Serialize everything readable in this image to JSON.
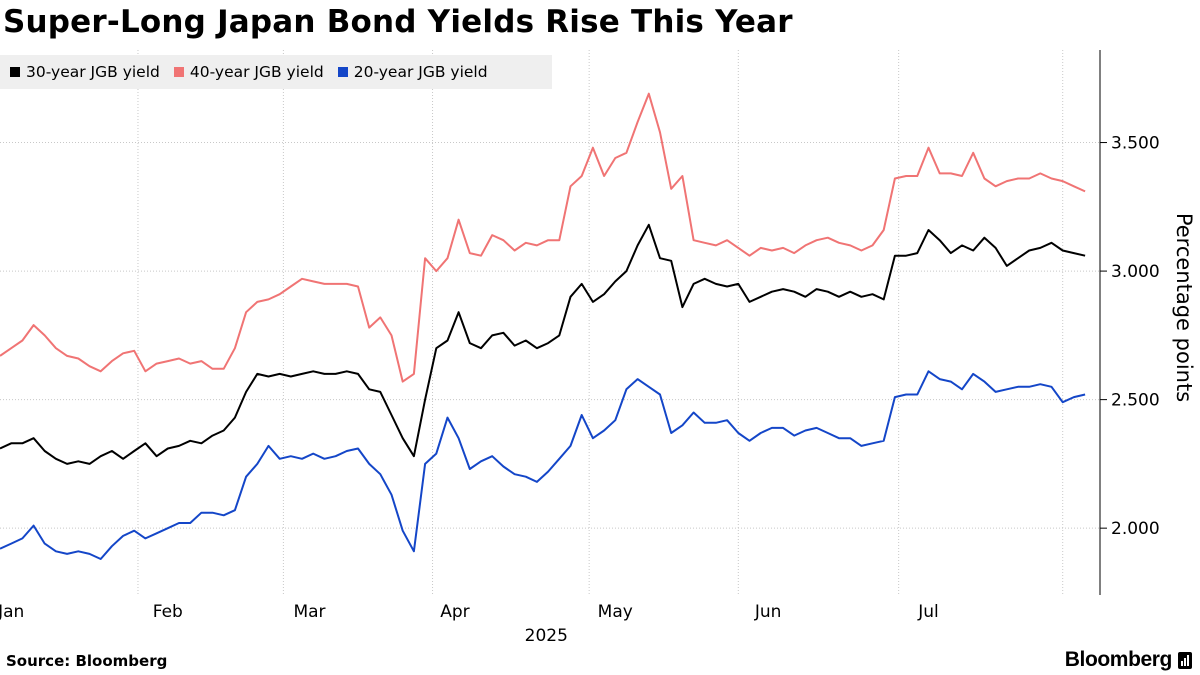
{
  "header": {
    "title": "Super-Long Japan Bond Yields Rise This Year"
  },
  "footer": {
    "source": "Source: Bloomberg",
    "brand": "Bloomberg"
  },
  "colors": {
    "series_30y": "#000000",
    "series_40y": "#f07474",
    "series_20y": "#1446c8",
    "grid": "#c8c8c8",
    "legend_bg": "#efefef"
  },
  "chart_data": {
    "type": "line",
    "title": "Super-Long Japan Bond Yields Rise This Year",
    "xlabel": "2025",
    "ylabel": "Percentage points",
    "x_range": [
      0,
      29.5
    ],
    "x_unit": "weeks from start of 2025",
    "ylim": [
      1.74,
      3.86
    ],
    "y_ticks": [
      2.0,
      2.5,
      3.0,
      3.5
    ],
    "y_tick_labels": [
      "2.000",
      "2.500",
      "3.000",
      "3.500"
    ],
    "month_ticks": [
      {
        "label": "Jan",
        "x": 0.3
      },
      {
        "label": "Feb",
        "x": 4.5
      },
      {
        "label": "Mar",
        "x": 8.3
      },
      {
        "label": "Apr",
        "x": 12.2
      },
      {
        "label": "May",
        "x": 16.5
      },
      {
        "label": "Jun",
        "x": 20.6
      },
      {
        "label": "Jul",
        "x": 24.9
      }
    ],
    "month_boundaries": [
      3.7,
      7.6,
      11.6,
      15.8,
      19.8,
      24.1,
      28.5
    ],
    "year_label": "2025",
    "grid": true,
    "legend_position": "top-left",
    "series": [
      {
        "name": "30-year JGB yield",
        "x": [
          0,
          0.3,
          0.6,
          0.9,
          1.2,
          1.5,
          1.8,
          2.1,
          2.4,
          2.7,
          3.0,
          3.3,
          3.6,
          3.9,
          4.2,
          4.5,
          4.8,
          5.1,
          5.4,
          5.7,
          6.0,
          6.3,
          6.6,
          6.9,
          7.2,
          7.5,
          7.8,
          8.1,
          8.4,
          8.7,
          9.0,
          9.3,
          9.6,
          9.9,
          10.2,
          10.5,
          10.8,
          11.1,
          11.4,
          11.7,
          12.0,
          12.3,
          12.6,
          12.9,
          13.2,
          13.5,
          13.8,
          14.1,
          14.4,
          14.7,
          15.0,
          15.3,
          15.6,
          15.9,
          16.2,
          16.5,
          16.8,
          17.1,
          17.4,
          17.7,
          18.0,
          18.3,
          18.6,
          18.9,
          19.2,
          19.5,
          19.8,
          20.1,
          20.4,
          20.7,
          21.0,
          21.3,
          21.6,
          21.9,
          22.2,
          22.5,
          22.8,
          23.1,
          23.4,
          23.7,
          24.0,
          24.3,
          24.6,
          24.9,
          25.2,
          25.5,
          25.8,
          26.1,
          26.4,
          26.7,
          27.0,
          27.3,
          27.6,
          27.9,
          28.2,
          28.5,
          28.8,
          29.1
        ],
        "values": [
          2.31,
          2.33,
          2.33,
          2.35,
          2.3,
          2.27,
          2.25,
          2.26,
          2.25,
          2.28,
          2.3,
          2.27,
          2.3,
          2.33,
          2.28,
          2.31,
          2.32,
          2.34,
          2.33,
          2.36,
          2.38,
          2.43,
          2.53,
          2.6,
          2.59,
          2.6,
          2.59,
          2.6,
          2.61,
          2.6,
          2.6,
          2.61,
          2.6,
          2.54,
          2.53,
          2.44,
          2.35,
          2.28,
          2.5,
          2.7,
          2.73,
          2.84,
          2.72,
          2.7,
          2.75,
          2.76,
          2.71,
          2.73,
          2.7,
          2.72,
          2.75,
          2.9,
          2.95,
          2.88,
          2.91,
          2.96,
          3.0,
          3.1,
          3.18,
          3.05,
          3.04,
          2.86,
          2.95,
          2.97,
          2.95,
          2.94,
          2.95,
          2.88,
          2.9,
          2.92,
          2.93,
          2.92,
          2.9,
          2.93,
          2.92,
          2.9,
          2.92,
          2.9,
          2.91,
          2.89,
          3.06,
          3.06,
          3.07,
          3.16,
          3.12,
          3.07,
          3.1,
          3.08,
          3.13,
          3.09,
          3.02,
          3.05,
          3.08,
          3.09,
          3.11,
          3.08,
          3.07,
          3.06
        ]
      },
      {
        "name": "40-year JGB yield",
        "x": [
          0,
          0.3,
          0.6,
          0.9,
          1.2,
          1.5,
          1.8,
          2.1,
          2.4,
          2.7,
          3.0,
          3.3,
          3.6,
          3.9,
          4.2,
          4.5,
          4.8,
          5.1,
          5.4,
          5.7,
          6.0,
          6.3,
          6.6,
          6.9,
          7.2,
          7.5,
          7.8,
          8.1,
          8.4,
          8.7,
          9.0,
          9.3,
          9.6,
          9.9,
          10.2,
          10.5,
          10.8,
          11.1,
          11.4,
          11.7,
          12.0,
          12.3,
          12.6,
          12.9,
          13.2,
          13.5,
          13.8,
          14.1,
          14.4,
          14.7,
          15.0,
          15.3,
          15.6,
          15.9,
          16.2,
          16.5,
          16.8,
          17.1,
          17.4,
          17.7,
          18.0,
          18.3,
          18.6,
          18.9,
          19.2,
          19.5,
          19.8,
          20.1,
          20.4,
          20.7,
          21.0,
          21.3,
          21.6,
          21.9,
          22.2,
          22.5,
          22.8,
          23.1,
          23.4,
          23.7,
          24.0,
          24.3,
          24.6,
          24.9,
          25.2,
          25.5,
          25.8,
          26.1,
          26.4,
          26.7,
          27.0,
          27.3,
          27.6,
          27.9,
          28.2,
          28.5,
          28.8,
          29.1
        ],
        "values": [
          2.67,
          2.7,
          2.73,
          2.79,
          2.75,
          2.7,
          2.67,
          2.66,
          2.63,
          2.61,
          2.65,
          2.68,
          2.69,
          2.61,
          2.64,
          2.65,
          2.66,
          2.64,
          2.65,
          2.62,
          2.62,
          2.7,
          2.84,
          2.88,
          2.89,
          2.91,
          2.94,
          2.97,
          2.96,
          2.95,
          2.95,
          2.95,
          2.94,
          2.78,
          2.82,
          2.75,
          2.57,
          2.6,
          3.05,
          3.0,
          3.05,
          3.2,
          3.07,
          3.06,
          3.14,
          3.12,
          3.08,
          3.11,
          3.1,
          3.12,
          3.12,
          3.33,
          3.37,
          3.48,
          3.37,
          3.44,
          3.46,
          3.58,
          3.69,
          3.54,
          3.32,
          3.37,
          3.12,
          3.11,
          3.1,
          3.12,
          3.09,
          3.06,
          3.09,
          3.08,
          3.09,
          3.07,
          3.1,
          3.12,
          3.13,
          3.11,
          3.1,
          3.08,
          3.1,
          3.16,
          3.36,
          3.37,
          3.37,
          3.48,
          3.38,
          3.38,
          3.37,
          3.46,
          3.36,
          3.33,
          3.35,
          3.36,
          3.36,
          3.38,
          3.36,
          3.35,
          3.33,
          3.31
        ]
      },
      {
        "name": "20-year JGB yield",
        "x": [
          0,
          0.3,
          0.6,
          0.9,
          1.2,
          1.5,
          1.8,
          2.1,
          2.4,
          2.7,
          3.0,
          3.3,
          3.6,
          3.9,
          4.2,
          4.5,
          4.8,
          5.1,
          5.4,
          5.7,
          6.0,
          6.3,
          6.6,
          6.9,
          7.2,
          7.5,
          7.8,
          8.1,
          8.4,
          8.7,
          9.0,
          9.3,
          9.6,
          9.9,
          10.2,
          10.5,
          10.8,
          11.1,
          11.4,
          11.7,
          12.0,
          12.3,
          12.6,
          12.9,
          13.2,
          13.5,
          13.8,
          14.1,
          14.4,
          14.7,
          15.0,
          15.3,
          15.6,
          15.9,
          16.2,
          16.5,
          16.8,
          17.1,
          17.4,
          17.7,
          18.0,
          18.3,
          18.6,
          18.9,
          19.2,
          19.5,
          19.8,
          20.1,
          20.4,
          20.7,
          21.0,
          21.3,
          21.6,
          21.9,
          22.2,
          22.5,
          22.8,
          23.1,
          23.4,
          23.7,
          24.0,
          24.3,
          24.6,
          24.9,
          25.2,
          25.5,
          25.8,
          26.1,
          26.4,
          26.7,
          27.0,
          27.3,
          27.6,
          27.9,
          28.2,
          28.5,
          28.8,
          29.1
        ],
        "values": [
          1.92,
          1.94,
          1.96,
          2.01,
          1.94,
          1.91,
          1.9,
          1.91,
          1.9,
          1.88,
          1.93,
          1.97,
          1.99,
          1.96,
          1.98,
          2.0,
          2.02,
          2.02,
          2.06,
          2.06,
          2.05,
          2.07,
          2.2,
          2.25,
          2.32,
          2.27,
          2.28,
          2.27,
          2.29,
          2.27,
          2.28,
          2.3,
          2.31,
          2.25,
          2.21,
          2.13,
          1.99,
          1.91,
          2.25,
          2.29,
          2.43,
          2.35,
          2.23,
          2.26,
          2.28,
          2.24,
          2.21,
          2.2,
          2.18,
          2.22,
          2.27,
          2.32,
          2.44,
          2.35,
          2.38,
          2.42,
          2.54,
          2.58,
          2.55,
          2.52,
          2.37,
          2.4,
          2.45,
          2.41,
          2.41,
          2.42,
          2.37,
          2.34,
          2.37,
          2.39,
          2.39,
          2.36,
          2.38,
          2.39,
          2.37,
          2.35,
          2.35,
          2.32,
          2.33,
          2.34,
          2.51,
          2.52,
          2.52,
          2.61,
          2.58,
          2.57,
          2.54,
          2.6,
          2.57,
          2.53,
          2.54,
          2.55,
          2.55,
          2.56,
          2.55,
          2.49,
          2.51,
          2.52
        ]
      }
    ]
  }
}
